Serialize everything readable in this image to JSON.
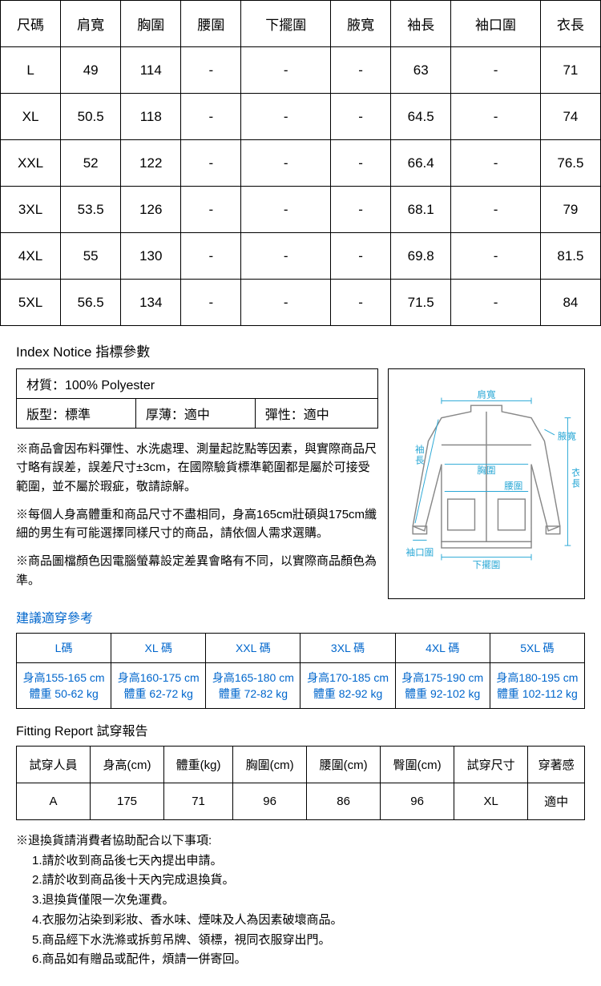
{
  "size_table": {
    "columns": [
      "尺碼",
      "肩寬",
      "胸圍",
      "腰圍",
      "下擺圍",
      "腋寬",
      "袖長",
      "袖口圍",
      "衣長"
    ],
    "rows": [
      [
        "L",
        "49",
        "114",
        "-",
        "-",
        "-",
        "63",
        "-",
        "71"
      ],
      [
        "XL",
        "50.5",
        "118",
        "-",
        "-",
        "-",
        "64.5",
        "-",
        "74"
      ],
      [
        "XXL",
        "52",
        "122",
        "-",
        "-",
        "-",
        "66.4",
        "-",
        "76.5"
      ],
      [
        "3XL",
        "53.5",
        "126",
        "-",
        "-",
        "-",
        "68.1",
        "-",
        "79"
      ],
      [
        "4XL",
        "55",
        "130",
        "-",
        "-",
        "-",
        "69.8",
        "-",
        "81.5"
      ],
      [
        "5XL",
        "56.5",
        "134",
        "-",
        "-",
        "-",
        "71.5",
        "-",
        "84"
      ]
    ]
  },
  "index_notice": {
    "title": "Index Notice 指標參數",
    "material": "材質：100% Polyester",
    "fit": "版型：標準",
    "thickness": "厚薄：適中",
    "elasticity": "彈性：適中",
    "notes": [
      "※商品會因布料彈性、水洗處理、測量起訖點等因素，與實際商品尺寸略有誤差，誤差尺寸±3cm，在國際驗貨標準範圍都是屬於可接受範圍，並不屬於瑕疵，敬請諒解。",
      "※每個人身高體重和商品尺寸不盡相同，身高165cm壯碩與175cm纖細的男生有可能選擇同樣尺寸的商品，請依個人需求選購。",
      "※商品圖檔顏色因電腦螢幕設定差異會略有不同，以實際商品顏色為準。"
    ]
  },
  "diagram_labels": {
    "shoulder": "肩寬",
    "armhole": "腋寬",
    "sleeve_len": "袖長",
    "chest": "胸圍",
    "waist": "腰圍",
    "body_len": "衣長",
    "cuff": "袖口圍",
    "hem": "下擺圍"
  },
  "suggest": {
    "title": "建議適穿參考",
    "columns": [
      "L碼",
      "XL 碼",
      "XXL 碼",
      "3XL 碼",
      "4XL 碼",
      "5XL 碼"
    ],
    "cells": [
      {
        "l1": "身高155-165 cm",
        "l2": "體重 50-62 kg"
      },
      {
        "l1": "身高160-175 cm",
        "l2": "體重 62-72 kg"
      },
      {
        "l1": "身高165-180 cm",
        "l2": "體重 72-82 kg"
      },
      {
        "l1": "身高170-185 cm",
        "l2": "體重 82-92 kg"
      },
      {
        "l1": "身高175-190 cm",
        "l2": "體重 92-102 kg"
      },
      {
        "l1": "身高180-195 cm",
        "l2": "體重 102-112 kg"
      }
    ]
  },
  "fitting": {
    "title": "Fitting Report 試穿報告",
    "columns": [
      "試穿人員",
      "身高(cm)",
      "體重(kg)",
      "胸圍(cm)",
      "腰圍(cm)",
      "臀圍(cm)",
      "試穿尺寸",
      "穿著感"
    ],
    "rows": [
      [
        "A",
        "175",
        "71",
        "96",
        "86",
        "96",
        "XL",
        "適中"
      ]
    ]
  },
  "return_policy": {
    "heading": "※退換貨請消費者協助配合以下事項:",
    "items": [
      "1.請於收到商品後七天內提出申請。",
      "2.請於收到商品後十天內完成退換貨。",
      "3.退換貨僅限一次免運費。",
      "4.衣服勿沾染到彩妝、香水味、煙味及人為因素破壞商品。",
      "5.商品經下水洗滌或拆剪吊牌、領標，視同衣服穿出門。",
      "6.商品如有贈品或配件，煩請一併寄回。"
    ]
  }
}
